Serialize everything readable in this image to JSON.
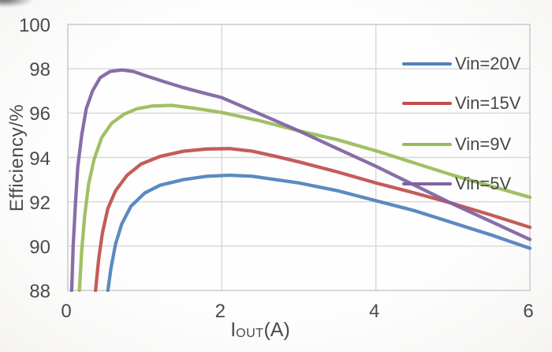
{
  "axes": {
    "y_title": "Efficiency/%",
    "x_title_pre": "I",
    "x_title_sub": "OUT",
    "x_title_post": "(A)",
    "y_ticks": [
      "100",
      "98",
      "96",
      "94",
      "92",
      "90",
      "88"
    ],
    "x_ticks": [
      "0",
      "2",
      "4",
      "6"
    ]
  },
  "colors": {
    "text": "#4b4b4b",
    "gridline": "#d7d7d7",
    "plot_border": "#cccccc",
    "background": "#fdfdfd",
    "series_blue": "#4f81bd",
    "series_red": "#bf504d",
    "series_green": "#9abb59",
    "series_purple": "#7f63a1"
  },
  "chart_data": {
    "type": "line",
    "title": "",
    "xlabel": "I_OUT (A)",
    "ylabel": "Efficiency/%",
    "xlim": [
      0,
      6
    ],
    "ylim": [
      88,
      100
    ],
    "x_tick_values": [
      0,
      2,
      4,
      6
    ],
    "y_tick_values": [
      88,
      90,
      92,
      94,
      96,
      98,
      100
    ],
    "grid": true,
    "legend_position": "inside-right",
    "series": [
      {
        "name": "Vin=20V",
        "color": "#4f81bd",
        "points": [
          [
            0.52,
            88.0
          ],
          [
            0.56,
            89.0
          ],
          [
            0.62,
            90.1
          ],
          [
            0.7,
            91.0
          ],
          [
            0.82,
            91.8
          ],
          [
            1.0,
            92.4
          ],
          [
            1.2,
            92.75
          ],
          [
            1.5,
            93.0
          ],
          [
            1.8,
            93.15
          ],
          [
            2.1,
            93.2
          ],
          [
            2.4,
            93.15
          ],
          [
            2.7,
            93.0
          ],
          [
            3.0,
            92.85
          ],
          [
            3.5,
            92.5
          ],
          [
            4.0,
            92.05
          ],
          [
            4.5,
            91.6
          ],
          [
            5.0,
            91.05
          ],
          [
            5.5,
            90.5
          ],
          [
            6.0,
            89.9
          ]
        ]
      },
      {
        "name": "Vin=15V",
        "color": "#bf504d",
        "points": [
          [
            0.36,
            88.0
          ],
          [
            0.4,
            89.4
          ],
          [
            0.45,
            90.6
          ],
          [
            0.52,
            91.7
          ],
          [
            0.62,
            92.5
          ],
          [
            0.77,
            93.2
          ],
          [
            0.95,
            93.7
          ],
          [
            1.2,
            94.05
          ],
          [
            1.5,
            94.28
          ],
          [
            1.8,
            94.38
          ],
          [
            2.1,
            94.4
          ],
          [
            2.4,
            94.28
          ],
          [
            2.7,
            94.05
          ],
          [
            3.0,
            93.8
          ],
          [
            3.5,
            93.35
          ],
          [
            4.0,
            92.85
          ],
          [
            4.5,
            92.4
          ],
          [
            5.0,
            91.92
          ],
          [
            5.5,
            91.4
          ],
          [
            6.0,
            90.85
          ]
        ]
      },
      {
        "name": "Vin=9V",
        "color": "#9abb59",
        "points": [
          [
            0.15,
            88.0
          ],
          [
            0.18,
            89.8
          ],
          [
            0.22,
            91.4
          ],
          [
            0.27,
            92.8
          ],
          [
            0.34,
            93.9
          ],
          [
            0.44,
            94.9
          ],
          [
            0.57,
            95.55
          ],
          [
            0.73,
            95.95
          ],
          [
            0.9,
            96.2
          ],
          [
            1.1,
            96.32
          ],
          [
            1.35,
            96.35
          ],
          [
            1.65,
            96.22
          ],
          [
            2.0,
            96.03
          ],
          [
            2.5,
            95.65
          ],
          [
            3.0,
            95.2
          ],
          [
            3.5,
            94.8
          ],
          [
            4.0,
            94.3
          ],
          [
            4.5,
            93.75
          ],
          [
            5.0,
            93.2
          ],
          [
            5.5,
            92.7
          ],
          [
            6.0,
            92.2
          ]
        ]
      },
      {
        "name": "Vin=5V",
        "color": "#7f63a1",
        "points": [
          [
            0.05,
            88.0
          ],
          [
            0.07,
            90.0
          ],
          [
            0.1,
            92.0
          ],
          [
            0.13,
            93.6
          ],
          [
            0.18,
            95.0
          ],
          [
            0.24,
            96.2
          ],
          [
            0.32,
            97.0
          ],
          [
            0.42,
            97.6
          ],
          [
            0.55,
            97.88
          ],
          [
            0.7,
            97.95
          ],
          [
            0.85,
            97.88
          ],
          [
            1.0,
            97.7
          ],
          [
            1.25,
            97.42
          ],
          [
            1.5,
            97.15
          ],
          [
            1.75,
            96.92
          ],
          [
            2.0,
            96.7
          ],
          [
            2.5,
            95.95
          ],
          [
            3.0,
            95.2
          ],
          [
            3.5,
            94.4
          ],
          [
            4.0,
            93.6
          ],
          [
            4.5,
            92.75
          ],
          [
            5.0,
            91.9
          ],
          [
            5.5,
            91.1
          ],
          [
            6.0,
            90.3
          ]
        ]
      }
    ]
  },
  "legend": {
    "items": [
      {
        "label": "Vin=20V",
        "color": "#4f81bd"
      },
      {
        "label": "Vin=15V",
        "color": "#bf504d"
      },
      {
        "label": "Vin=9V",
        "color": "#9abb59"
      },
      {
        "label": "Vin=5V",
        "color": "#7f63a1"
      }
    ]
  }
}
